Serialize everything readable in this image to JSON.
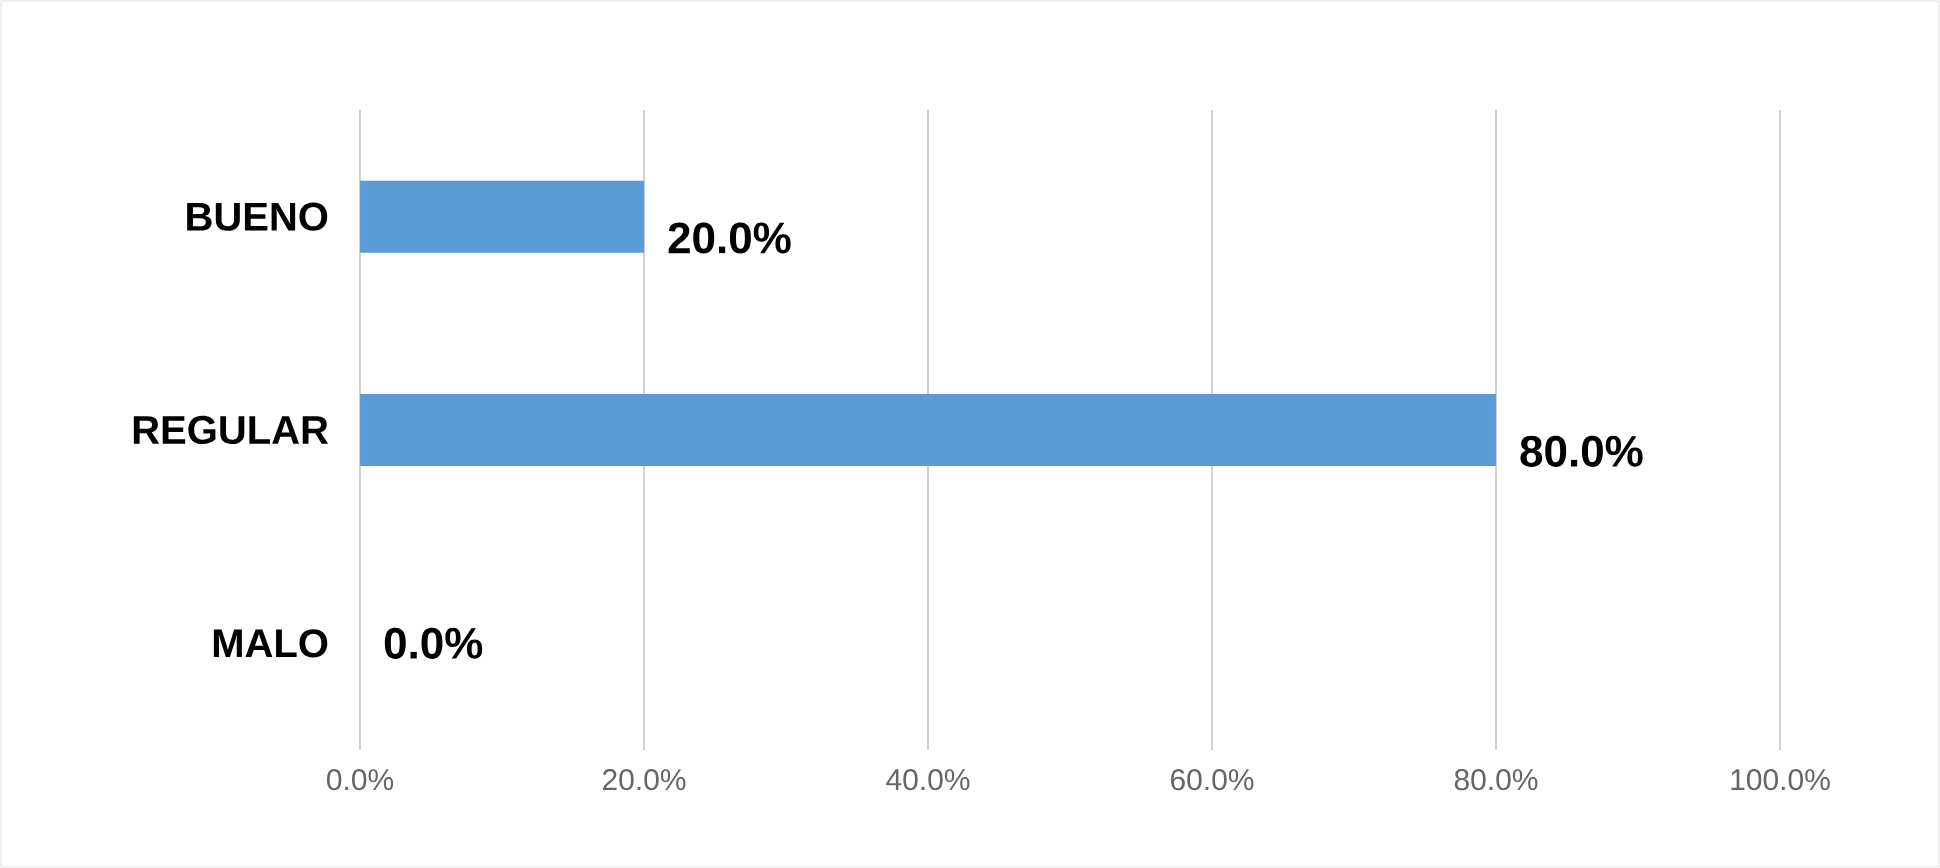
{
  "chart_data": {
    "type": "bar",
    "orientation": "horizontal",
    "categories": [
      "BUENO",
      "REGULAR",
      "MALO"
    ],
    "values": [
      20,
      80,
      0
    ],
    "value_labels": [
      "20.0%",
      "80.0%",
      "0.0%"
    ],
    "color": "#5b9bd5",
    "xlim": [
      0,
      100
    ],
    "xticks": [
      {
        "value": 0,
        "label": "0.0%"
      },
      {
        "value": 20,
        "label": "20.0%"
      },
      {
        "value": 40,
        "label": "40.0%"
      },
      {
        "value": 60,
        "label": "60.0%"
      },
      {
        "value": 80,
        "label": "80.0%"
      },
      {
        "value": 100,
        "label": "100.0%"
      }
    ],
    "grid": "x"
  }
}
